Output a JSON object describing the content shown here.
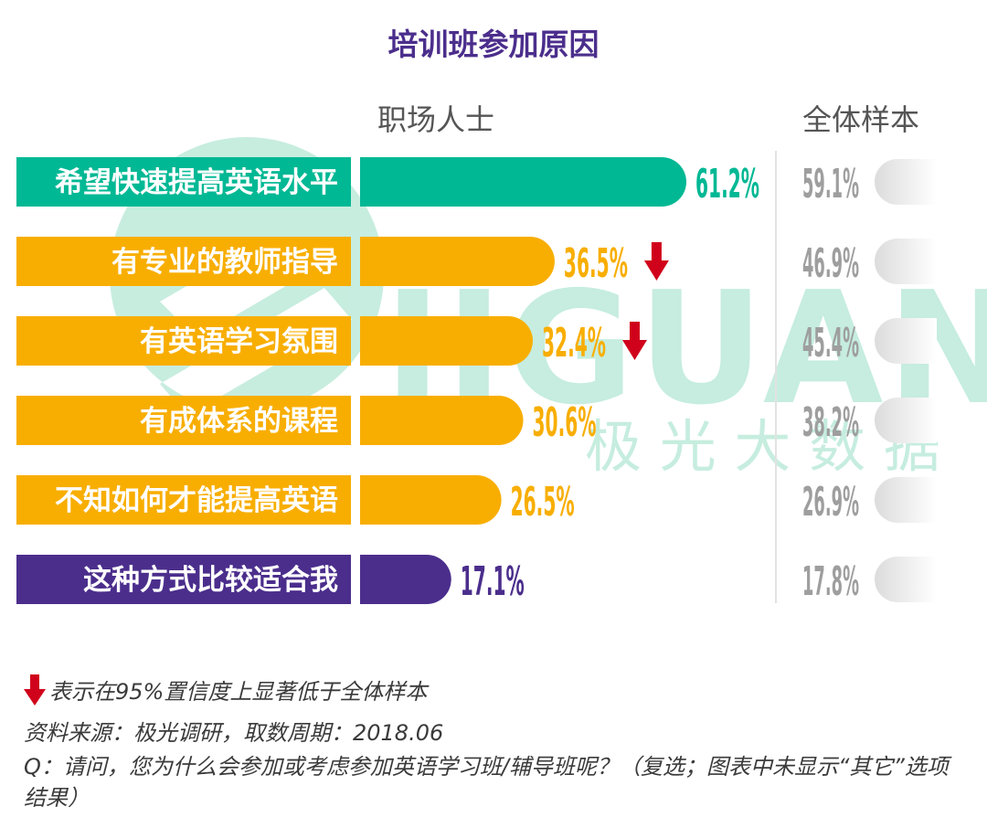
{
  "title": "培训班参加原因",
  "columns": {
    "group": "职场人士",
    "total": "全体样本"
  },
  "watermark": {
    "latin": "JIGUANG",
    "cjk": "极 光 大 数 据"
  },
  "colors": {
    "title": "#4b2e8c",
    "teal": "#00b894",
    "orange": "#f8ae00",
    "purple": "#4b2e8c",
    "arrow": "#d0021b",
    "gray": "#9e9e9e",
    "watermark": "#8fdcc0"
  },
  "chart_data": {
    "type": "bar",
    "categories": [
      "希望快速提高英语水平",
      "有专业的教师指导",
      "有英语学习氛围",
      "有成体系的课程",
      "不知如何才能提高英语",
      "这种方式比较适合我"
    ],
    "series": [
      {
        "name": "职场人士",
        "values": [
          61.2,
          36.5,
          32.4,
          30.6,
          26.5,
          17.1
        ],
        "labels": [
          "61.2%",
          "36.5%",
          "32.4%",
          "30.6%",
          "26.5%",
          "17.1%"
        ]
      },
      {
        "name": "全体样本",
        "values": [
          59.1,
          46.9,
          45.4,
          38.2,
          26.9,
          17.8
        ],
        "labels": [
          "59.1%",
          "46.9%",
          "45.4%",
          "38.2%",
          "26.9%",
          "17.8%"
        ]
      }
    ],
    "bar_colors": [
      "teal",
      "orange",
      "orange",
      "orange",
      "orange",
      "purple"
    ],
    "significantly_lower": [
      false,
      true,
      true,
      false,
      false,
      false
    ],
    "xlim": [
      0,
      100
    ]
  },
  "footer": {
    "legend": "表示在95%置信度上显著低于全体样本",
    "source": "资料来源：极光调研，取数周期：2018.06",
    "question": "Q：请问，您为什么会参加或考虑参加英语学习班/辅导班呢？（复选；图表中未显示“其它”选项结果）"
  }
}
